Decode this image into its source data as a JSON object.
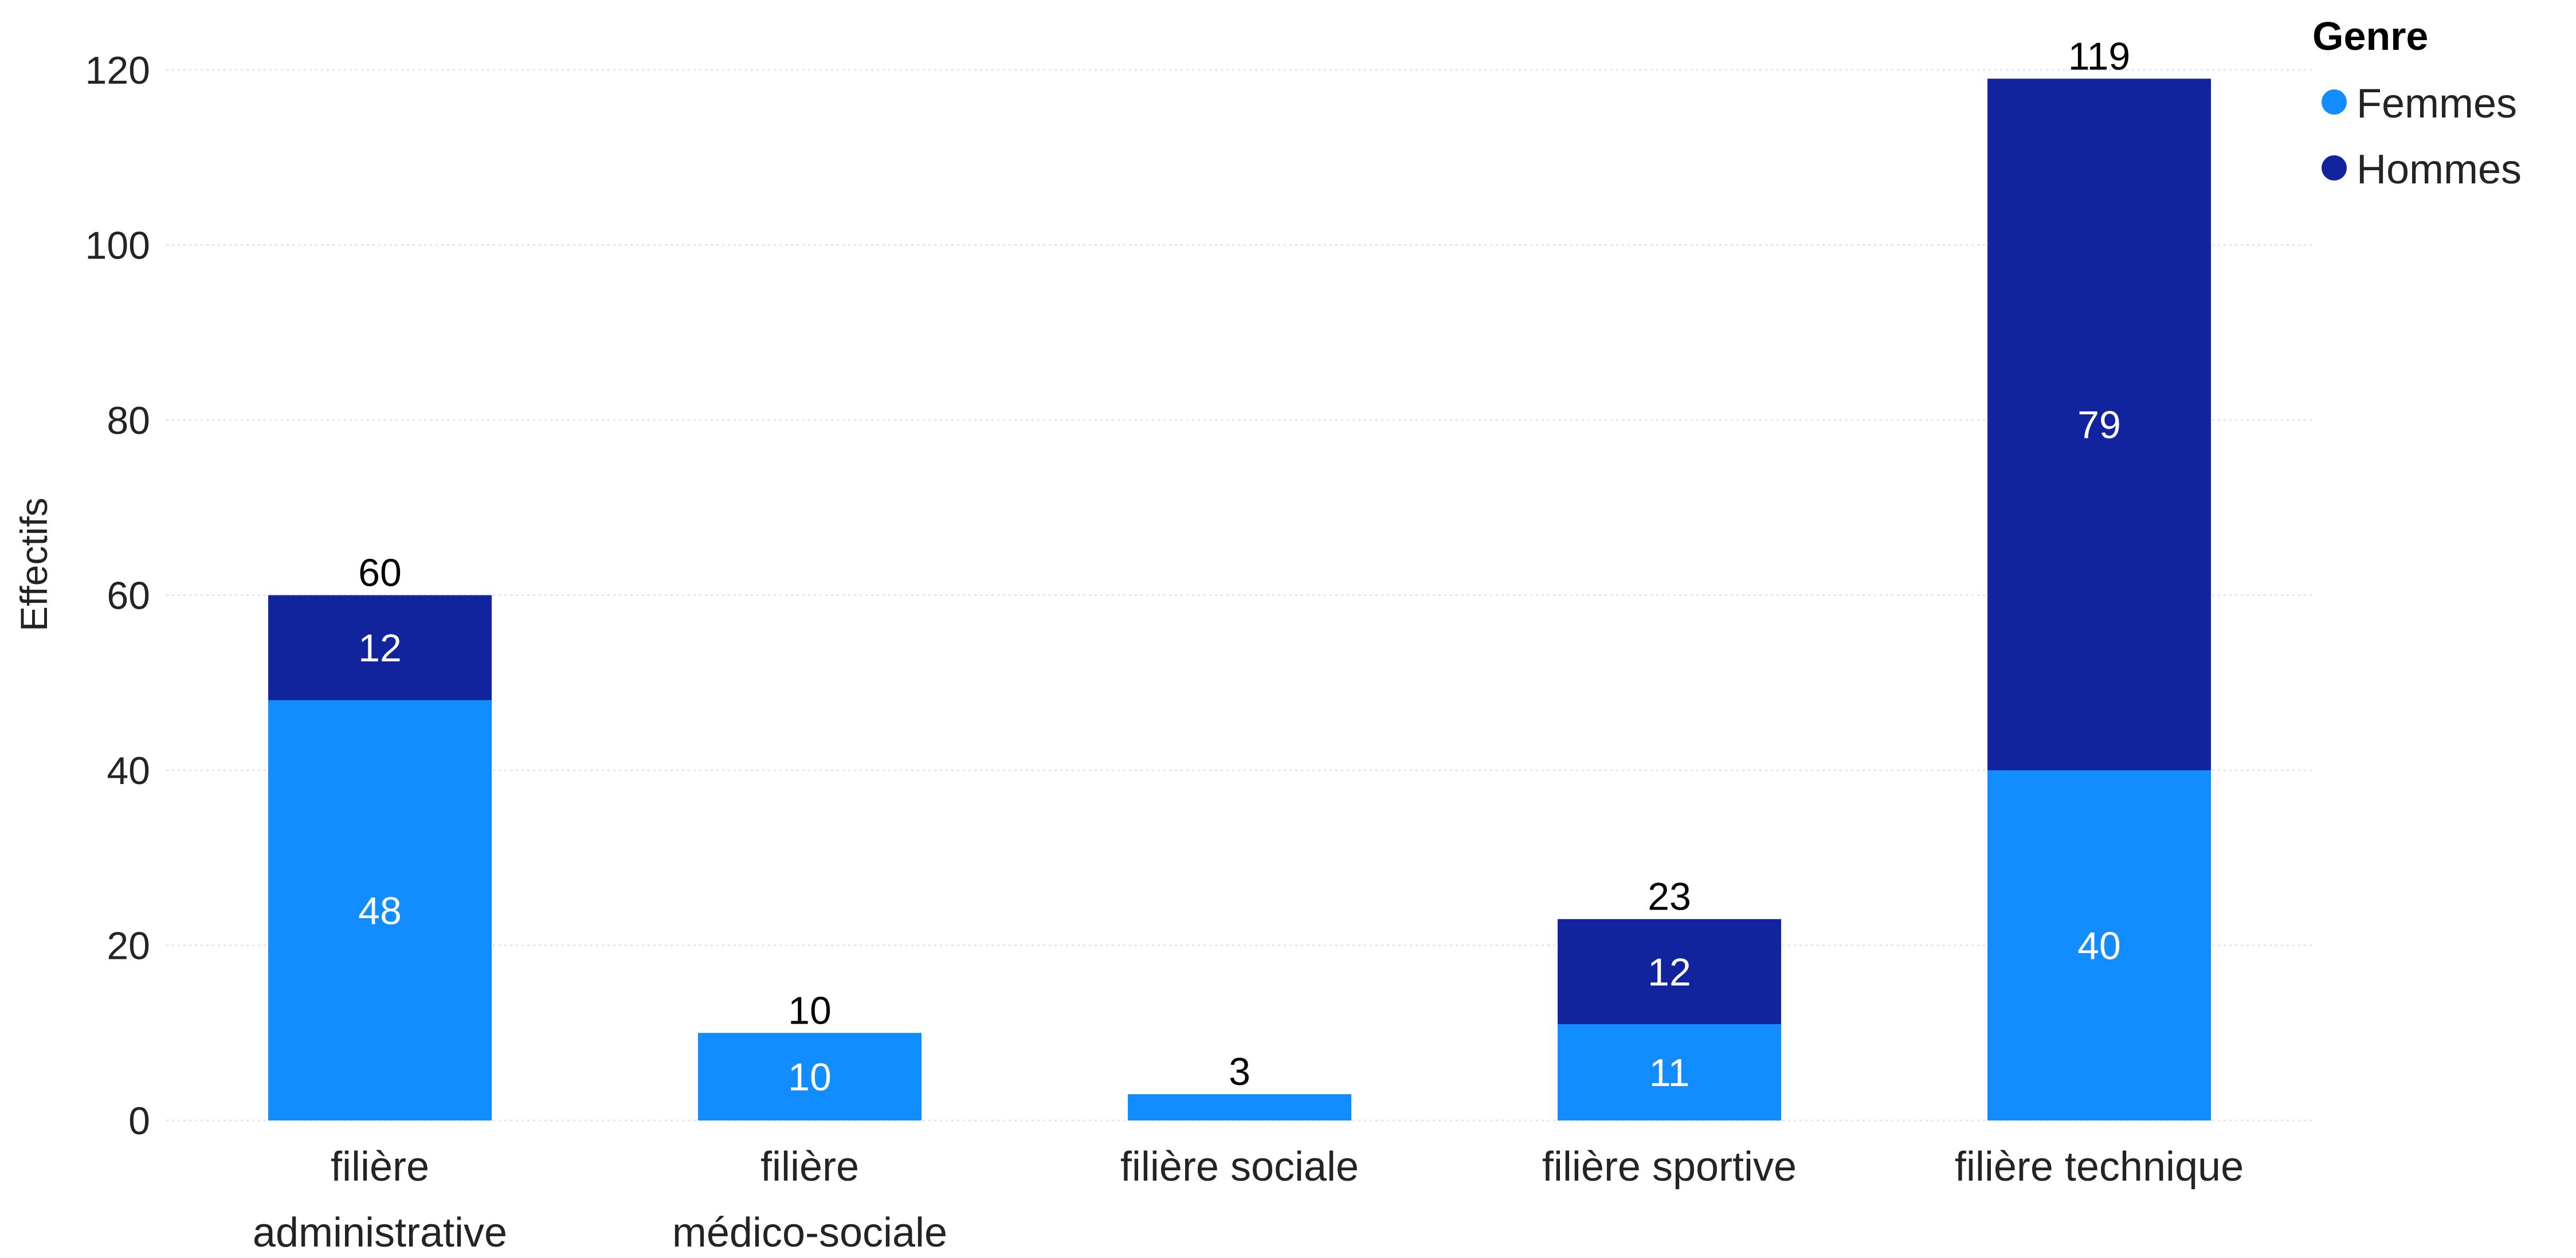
{
  "chart_data": {
    "type": "bar",
    "stacked": true,
    "categories": [
      [
        "filière",
        "administrative"
      ],
      [
        "filière",
        "médico-sociale"
      ],
      [
        "filière sociale"
      ],
      [
        "filière sportive"
      ],
      [
        "filière technique"
      ]
    ],
    "series": [
      {
        "name": "Femmes",
        "color": "#118DFF",
        "values": [
          48,
          10,
          3,
          11,
          40
        ],
        "labels": [
          "48",
          "10",
          "",
          "11",
          "40"
        ]
      },
      {
        "name": "Hommes",
        "color": "#12239E",
        "values": [
          12,
          0,
          0,
          12,
          79
        ],
        "labels": [
          "12",
          "",
          "",
          "12",
          "79"
        ]
      }
    ],
    "totals": [
      60,
      10,
      3,
      23,
      119
    ],
    "ylabel": "Effectifs",
    "ylim": [
      0,
      120
    ],
    "yticks": [
      0,
      20,
      40,
      60,
      80,
      100,
      120
    ],
    "grid": true,
    "legend": {
      "title": "Genre",
      "position": "top-right"
    }
  }
}
